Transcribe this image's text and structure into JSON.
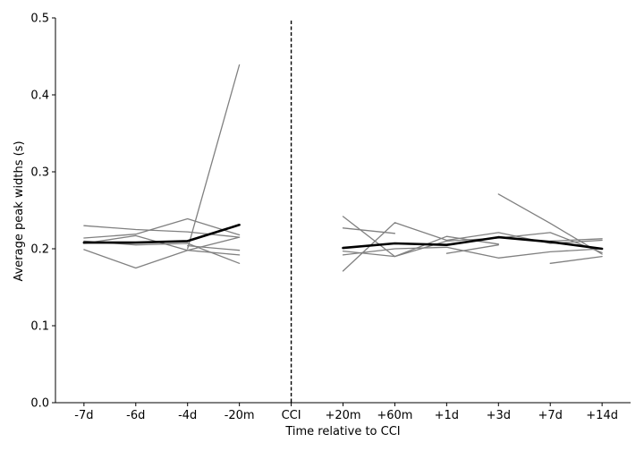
{
  "chart_data": {
    "type": "line",
    "title": "",
    "xlabel": "Time relative to CCI",
    "ylabel": "Average peak widths (s)",
    "categories": [
      "-7d",
      "-6d",
      "-4d",
      "-20m",
      "CCI",
      "+20m",
      "+60m",
      "+1d",
      "+3d",
      "+7d",
      "+14d"
    ],
    "ylim": [
      0.0,
      0.5
    ],
    "yticks": [
      "0.0",
      "0.1",
      "0.2",
      "0.3",
      "0.4",
      "0.5"
    ],
    "grid": false,
    "legend": "none",
    "reference_line": {
      "category": "CCI",
      "style": "dashed"
    },
    "colors": {
      "individual": "#808080",
      "mean": "#000000",
      "axis": "#000000"
    },
    "series": [
      {
        "values": [
          0.23,
          0.225,
          0.222,
          0.215,
          null,
          null,
          null,
          null,
          null,
          null,
          null
        ]
      },
      {
        "values": [
          0.214,
          0.219,
          0.239,
          0.218,
          null,
          null,
          null,
          null,
          null,
          null,
          null
        ]
      },
      {
        "values": [
          0.199,
          0.175,
          0.198,
          0.215,
          null,
          null,
          null,
          null,
          null,
          null,
          null
        ]
      },
      {
        "values": [
          0.207,
          0.217,
          0.198,
          0.192,
          null,
          null,
          null,
          null,
          null,
          null,
          null
        ]
      },
      {
        "values": [
          0.21,
          0.205,
          0.207,
          0.181,
          null,
          null,
          null,
          null,
          null,
          null,
          null
        ]
      },
      {
        "values": [
          null,
          null,
          0.2,
          0.439,
          null,
          null,
          null,
          null,
          null,
          null,
          null
        ]
      },
      {
        "values": [
          null,
          null,
          0.204,
          0.198,
          null,
          null,
          null,
          null,
          null,
          null,
          null
        ]
      },
      {
        "values": [
          null,
          null,
          null,
          null,
          null,
          0.242,
          0.19,
          0.216,
          0.206,
          null,
          null
        ]
      },
      {
        "values": [
          null,
          null,
          null,
          null,
          null,
          0.171,
          0.234,
          0.211,
          0.221,
          0.207,
          0.211
        ]
      },
      {
        "values": [
          null,
          null,
          null,
          null,
          null,
          0.227,
          0.22,
          null,
          null,
          null,
          null
        ]
      },
      {
        "values": [
          null,
          null,
          null,
          null,
          null,
          0.192,
          0.2,
          0.202,
          0.188,
          0.196,
          0.2
        ]
      },
      {
        "values": [
          null,
          null,
          null,
          null,
          null,
          0.197,
          0.19,
          0.21,
          0.214,
          0.221,
          0.195
        ]
      },
      {
        "values": [
          null,
          null,
          null,
          null,
          null,
          null,
          null,
          0.194,
          0.205,
          null,
          null
        ]
      },
      {
        "values": [
          null,
          null,
          null,
          null,
          null,
          null,
          null,
          null,
          0.271,
          0.233,
          0.193
        ]
      },
      {
        "values": [
          null,
          null,
          null,
          null,
          null,
          null,
          null,
          null,
          null,
          0.181,
          0.19
        ]
      },
      {
        "values": [
          null,
          null,
          null,
          null,
          null,
          null,
          null,
          null,
          null,
          0.21,
          0.213
        ]
      },
      {
        "mean": true,
        "values": [
          0.208,
          0.208,
          0.21,
          0.231,
          null,
          0.201,
          0.207,
          0.205,
          0.215,
          0.209,
          0.2
        ]
      }
    ]
  }
}
